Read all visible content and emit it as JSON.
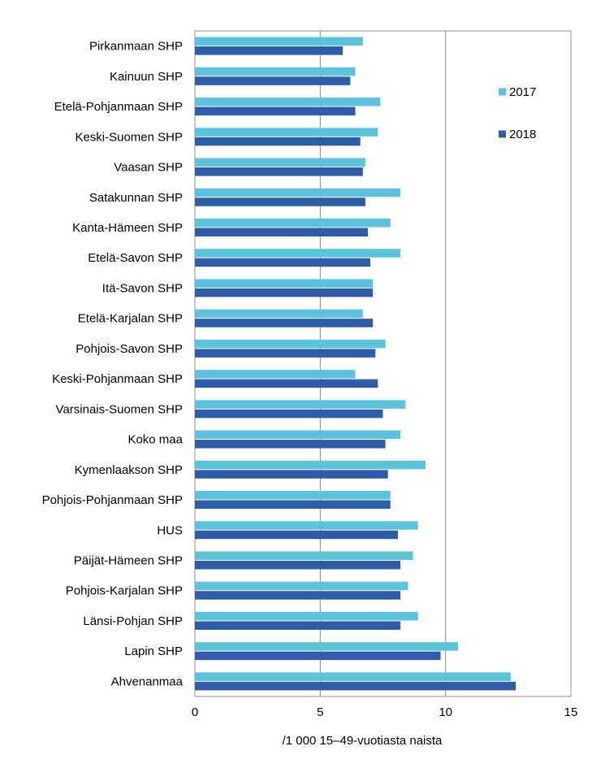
{
  "chart_data": {
    "type": "bar",
    "orientation": "horizontal",
    "categories": [
      "Pirkanmaan SHP",
      "Kainuun SHP",
      "Etelä-Pohjanmaan SHP",
      "Keski-Suomen SHP",
      "Vaasan SHP",
      "Satakunnan SHP",
      "Kanta-Hämeen SHP",
      "Etelä-Savon SHP",
      "Itä-Savon SHP",
      "Etelä-Karjalan SHP",
      "Pohjois-Savon SHP",
      "Keski-Pohjanmaan SHP",
      "Varsinais-Suomen SHP",
      "Koko maa",
      "Kymenlaakson SHP",
      "Pohjois-Pohjanmaan SHP",
      "HUS",
      "Päijät-Hämeen SHP",
      "Pohjois-Karjalan SHP",
      "Länsi-Pohjan SHP",
      "Lapin SHP",
      "Ahvenanmaa"
    ],
    "series": [
      {
        "name": "2017",
        "color": "#5bc4dc",
        "values": [
          6.7,
          6.4,
          7.4,
          7.3,
          6.8,
          8.2,
          7.8,
          8.2,
          7.1,
          6.7,
          7.6,
          6.4,
          8.4,
          8.2,
          9.2,
          7.8,
          8.9,
          8.7,
          8.5,
          8.9,
          10.5,
          12.6
        ]
      },
      {
        "name": "2018",
        "color": "#2e5ca8",
        "values": [
          5.9,
          6.2,
          6.4,
          6.6,
          6.7,
          6.8,
          6.9,
          7.0,
          7.1,
          7.1,
          7.2,
          7.3,
          7.5,
          7.6,
          7.7,
          7.8,
          8.1,
          8.2,
          8.2,
          8.2,
          9.8,
          12.8
        ]
      }
    ],
    "xlim": [
      0,
      15
    ],
    "xticks": [
      "0",
      "5",
      "10",
      "15"
    ],
    "xlabel": "/1 000 15–49-vuotiasta  naista",
    "ylabel": "",
    "title": "",
    "grid": "vertical major gridlines",
    "legend_position": "right"
  }
}
